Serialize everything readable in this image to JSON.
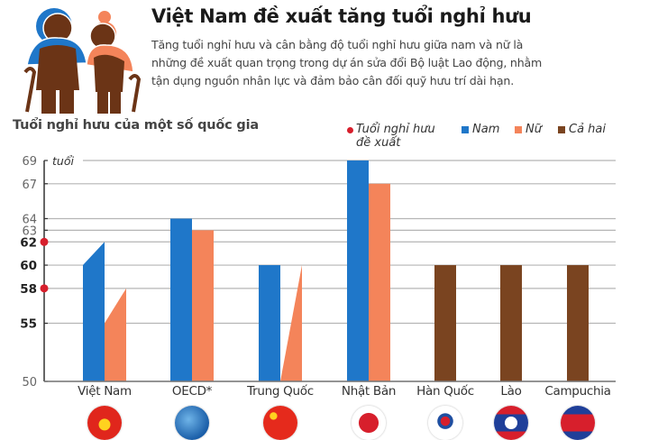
{
  "header": {
    "title": "Việt Nam đề xuất tăng tuổi nghỉ hưu",
    "subtitle_lines": [
      "Tăng tuổi nghỉ hưu và cân bằng độ tuổi nghỉ hưu giữa nam và nữ là",
      "những đề xuất quan trọng trong dự án sửa đổi Bộ luật Lao động, nhằm",
      "tận dụng nguồn nhân lực và đảm bảo cân đối quỹ hưu trí dài hạn."
    ],
    "illustration": "elderly-couple-icon"
  },
  "colors": {
    "nam": "#1f77c9",
    "nu": "#f4845a",
    "ca_hai": "#7a4420",
    "proposed": "#d71f2c",
    "grid": "#b5b5b5",
    "axis": "#333333"
  },
  "chart_data": {
    "type": "bar",
    "title": "Tuổi nghỉ hưu của một số quốc gia",
    "ylabel": "tuổi",
    "xlabel": "",
    "ylim": [
      50,
      69
    ],
    "yticks": [
      50,
      55,
      58,
      60,
      62,
      63,
      64,
      67,
      69
    ],
    "yticks_bold": [
      55,
      58,
      60,
      62
    ],
    "grid": true,
    "legend": [
      {
        "key": "proposed",
        "label": "Tuổi nghỉ hưu đề xuất",
        "label_line1": "Tuổi nghỉ hưu",
        "label_line2": "đề xuất",
        "marker": "dot"
      },
      {
        "key": "nam",
        "label": "Nam",
        "marker": "square"
      },
      {
        "key": "nu",
        "label": "Nữ",
        "marker": "square"
      },
      {
        "key": "ca_hai",
        "label": "Cả hai",
        "marker": "square"
      }
    ],
    "legend_position": "top-right",
    "categories": [
      "Việt Nam",
      "OECD*",
      "Trung Quốc",
      "Nhật Bản",
      "Hàn Quốc",
      "Lào",
      "Campuchia"
    ],
    "series": [
      {
        "name": "Nam",
        "values": [
          60,
          64,
          60,
          69,
          null,
          null,
          null
        ],
        "proposed": [
          62,
          null,
          null,
          null,
          null,
          null,
          null
        ]
      },
      {
        "name": "Nữ",
        "values": [
          55,
          63,
          50,
          67,
          null,
          null,
          null
        ],
        "proposed": [
          58,
          null,
          60,
          null,
          null,
          null,
          null
        ]
      },
      {
        "name": "Cả hai",
        "values": [
          null,
          null,
          null,
          null,
          60,
          60,
          60
        ]
      }
    ],
    "proposed_markers": [
      {
        "value": 62,
        "label": "Nam Việt Nam đề xuất"
      },
      {
        "value": 58,
        "label": "Nữ Việt Nam đề xuất"
      }
    ],
    "annotations": [
      "Slanted bar tops for Việt Nam show increase from current to proposed age",
      "Trung Quốc Nữ shown as ramp up to 60"
    ]
  },
  "flags": [
    {
      "country": "Việt Nam",
      "icon": "vietnam-flag-icon"
    },
    {
      "country": "OECD*",
      "icon": "oecd-logo-icon"
    },
    {
      "country": "Trung Quốc",
      "icon": "china-flag-icon"
    },
    {
      "country": "Nhật Bản",
      "icon": "japan-flag-icon"
    },
    {
      "country": "Hàn Quốc",
      "icon": "korea-flag-icon"
    },
    {
      "country": "Lào",
      "icon": "laos-flag-icon"
    },
    {
      "country": "Campuchia",
      "icon": "cambodia-flag-icon"
    }
  ]
}
